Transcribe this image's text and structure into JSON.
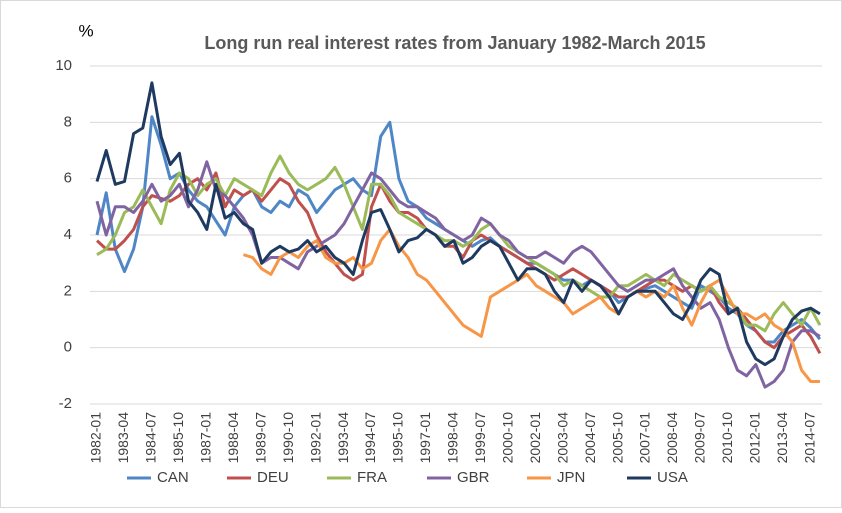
{
  "chart_data": {
    "type": "line",
    "title": "Long run real interest rates from January 1982-March 2015",
    "y_label": "%",
    "categories": [
      "1982-01",
      null,
      null,
      "1983-04",
      null,
      null,
      "1984-07",
      null,
      null,
      "1985-10",
      null,
      null,
      "1987-01",
      null,
      null,
      "1988-04",
      null,
      null,
      "1989-07",
      null,
      null,
      "1990-10",
      null,
      null,
      "1992-01",
      null,
      null,
      "1993-04",
      null,
      null,
      "1994-07",
      null,
      null,
      "1995-10",
      null,
      null,
      "1997-01",
      null,
      null,
      "1998-04",
      null,
      null,
      "1999-07",
      null,
      null,
      "2000-10",
      null,
      null,
      "2002-01",
      null,
      null,
      "2003-04",
      null,
      null,
      "2004-07",
      null,
      null,
      "2005-10",
      null,
      null,
      "2007-01",
      null,
      null,
      "2008-04",
      null,
      null,
      "2009-07",
      null,
      null,
      "2010-10",
      null,
      null,
      "2012-01",
      null,
      null,
      "2013-04",
      null,
      null,
      "2014-07",
      null
    ],
    "series": [
      {
        "name": "CAN",
        "color": "#4f86c6",
        "values": [
          4.0,
          5.5,
          3.5,
          2.7,
          3.5,
          5.0,
          8.2,
          7.2,
          6.0,
          6.2,
          5.6,
          5.2,
          5.0,
          4.5,
          4.0,
          5.0,
          5.4,
          5.6,
          5.0,
          4.8,
          5.2,
          5.0,
          5.6,
          5.4,
          4.8,
          5.2,
          5.6,
          5.8,
          6.0,
          5.6,
          5.4,
          7.5,
          8.0,
          6.0,
          5.2,
          5.0,
          4.6,
          4.4,
          4.2,
          4.0,
          3.8,
          3.6,
          3.8,
          3.9,
          3.6,
          3.4,
          3.2,
          3.0,
          3.0,
          2.8,
          2.6,
          2.4,
          2.4,
          2.2,
          2.4,
          2.2,
          2.0,
          1.6,
          1.8,
          2.0,
          2.1,
          2.2,
          2.0,
          1.8,
          1.6,
          1.4,
          2.2,
          2.0,
          1.8,
          1.4,
          1.2,
          0.8,
          0.6,
          0.2,
          0.2,
          0.6,
          0.8,
          1.0,
          0.7,
          0.3
        ]
      },
      {
        "name": "DEU",
        "color": "#c0504d",
        "values": [
          3.8,
          3.5,
          3.5,
          3.8,
          4.2,
          5.0,
          5.4,
          5.3,
          5.2,
          5.4,
          5.8,
          6.0,
          5.6,
          6.2,
          5.0,
          5.6,
          5.4,
          5.6,
          5.2,
          5.6,
          6.0,
          5.8,
          5.2,
          4.8,
          4.0,
          3.4,
          3.0,
          2.6,
          2.4,
          2.6,
          5.0,
          5.8,
          5.2,
          4.8,
          4.8,
          4.6,
          4.2,
          4.0,
          3.6,
          3.6,
          3.2,
          3.8,
          4.0,
          3.8,
          3.6,
          3.4,
          3.2,
          3.0,
          2.8,
          2.6,
          2.4,
          2.6,
          2.8,
          2.6,
          2.4,
          2.2,
          2.0,
          1.8,
          1.8,
          2.0,
          2.2,
          2.4,
          2.4,
          2.2,
          2.0,
          2.2,
          2.0,
          2.2,
          1.6,
          1.2,
          1.4,
          1.0,
          0.6,
          0.2,
          0.0,
          0.4,
          0.6,
          0.8,
          0.4,
          -0.2
        ]
      },
      {
        "name": "FRA",
        "color": "#9bbb59",
        "values": [
          3.3,
          3.5,
          4.0,
          4.8,
          5.0,
          5.6,
          5.0,
          4.4,
          5.6,
          6.2,
          6.0,
          5.4,
          5.8,
          6.0,
          5.4,
          6.0,
          5.8,
          5.6,
          5.4,
          6.2,
          6.8,
          6.2,
          5.8,
          5.6,
          5.8,
          6.0,
          6.4,
          5.8,
          5.0,
          4.2,
          5.8,
          5.8,
          5.4,
          4.8,
          4.6,
          4.4,
          4.2,
          4.0,
          3.8,
          3.8,
          3.6,
          3.8,
          4.2,
          4.4,
          4.0,
          3.6,
          3.4,
          3.2,
          3.0,
          2.8,
          2.6,
          2.2,
          2.4,
          2.2,
          2.0,
          1.8,
          1.8,
          2.2,
          2.2,
          2.4,
          2.6,
          2.4,
          2.2,
          2.6,
          2.4,
          2.2,
          2.0,
          2.2,
          1.8,
          1.6,
          1.4,
          0.8,
          0.8,
          0.6,
          1.2,
          1.6,
          1.2,
          0.8,
          1.4,
          0.8
        ]
      },
      {
        "name": "GBR",
        "color": "#8064a2",
        "values": [
          5.2,
          4.0,
          5.0,
          5.0,
          4.8,
          5.2,
          5.8,
          5.2,
          5.4,
          5.8,
          5.0,
          5.6,
          6.6,
          5.6,
          5.4,
          5.0,
          4.6,
          4.0,
          3.0,
          3.2,
          3.2,
          3.0,
          2.8,
          3.4,
          3.6,
          3.8,
          4.0,
          4.4,
          5.0,
          5.6,
          6.2,
          6.0,
          5.6,
          5.2,
          5.0,
          5.0,
          4.8,
          4.6,
          4.2,
          4.0,
          3.8,
          4.0,
          4.6,
          4.4,
          4.0,
          3.8,
          3.4,
          3.2,
          3.2,
          3.4,
          3.2,
          3.0,
          3.4,
          3.6,
          3.4,
          3.0,
          2.6,
          2.2,
          2.0,
          2.2,
          2.4,
          2.4,
          2.6,
          2.8,
          2.2,
          1.8,
          1.4,
          1.6,
          1.0,
          0.0,
          -0.8,
          -1.0,
          -0.6,
          -1.4,
          -1.2,
          -0.8,
          0.2,
          0.6,
          0.6,
          0.4
        ]
      },
      {
        "name": "JPN",
        "color": "#f79646",
        "values": [
          null,
          null,
          null,
          null,
          null,
          null,
          null,
          null,
          null,
          null,
          null,
          null,
          null,
          null,
          null,
          null,
          3.3,
          3.2,
          2.8,
          2.6,
          3.2,
          3.4,
          3.2,
          3.6,
          3.8,
          3.2,
          3.0,
          3.0,
          3.2,
          2.8,
          3.0,
          3.8,
          4.2,
          3.6,
          3.2,
          2.6,
          2.4,
          2.0,
          1.6,
          1.2,
          0.8,
          0.6,
          0.4,
          1.8,
          2.0,
          2.2,
          2.4,
          2.6,
          2.2,
          2.0,
          1.8,
          1.6,
          1.2,
          1.4,
          1.6,
          1.8,
          1.4,
          1.2,
          1.8,
          2.0,
          1.8,
          2.0,
          1.8,
          2.2,
          1.4,
          0.8,
          1.6,
          2.2,
          2.4,
          1.8,
          1.2,
          1.2,
          1.0,
          1.2,
          0.8,
          0.6,
          0.2,
          -0.8,
          -1.2,
          -1.2
        ]
      },
      {
        "name": "USA",
        "color": "#1f3a60",
        "values": [
          5.9,
          7.0,
          5.8,
          5.9,
          7.6,
          7.8,
          9.4,
          7.5,
          6.5,
          6.9,
          5.2,
          4.8,
          4.2,
          5.8,
          4.6,
          4.8,
          4.4,
          4.2,
          3.0,
          3.4,
          3.6,
          3.4,
          3.5,
          3.8,
          3.4,
          3.6,
          3.2,
          3.0,
          2.6,
          3.8,
          4.8,
          4.9,
          4.2,
          3.4,
          3.8,
          3.9,
          4.2,
          4.0,
          3.6,
          3.8,
          3.0,
          3.2,
          3.6,
          3.8,
          3.6,
          3.0,
          2.4,
          2.8,
          2.8,
          2.6,
          2.0,
          1.6,
          2.4,
          2.0,
          2.4,
          2.2,
          1.8,
          1.2,
          1.8,
          2.0,
          2.0,
          2.0,
          1.6,
          1.2,
          1.0,
          1.6,
          2.4,
          2.8,
          2.6,
          1.2,
          1.4,
          0.2,
          -0.4,
          -0.6,
          -0.4,
          0.4,
          1.0,
          1.3,
          1.4,
          1.2
        ]
      }
    ],
    "ylim": [
      -2,
      10
    ],
    "yticks": [
      -2,
      0,
      2,
      4,
      6,
      8,
      10
    ],
    "grid": true,
    "legend": "bottom"
  }
}
